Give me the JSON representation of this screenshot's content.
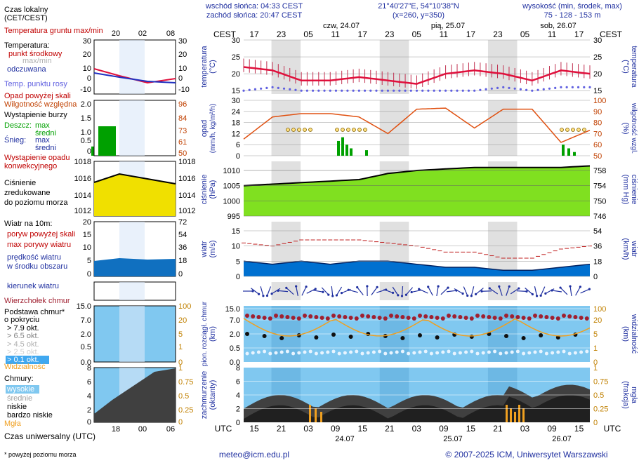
{
  "header": {
    "sunrise": "wschód słońca: 04:33 CEST",
    "sunset": "zachód słońca: 20:47 CEST",
    "coords": "21°40'27\"E, 54°10'38\"N",
    "grid": "(x=260, y=350)",
    "elevation_title": "wysokość (min, środek, max)",
    "elevation_values": "75 - 128 - 153 m"
  },
  "top_axis": {
    "left_label": "CEST",
    "right_label": "CEST",
    "hours": [
      "17",
      "23",
      "05",
      "11",
      "17",
      "23",
      "05",
      "11",
      "17",
      "23",
      "05",
      "11",
      "17"
    ],
    "days": [
      "czw, 24.07",
      "pią, 25.07",
      "sob, 26.07"
    ]
  },
  "bottom_axis": {
    "left_label": "UTC",
    "right_label": "UTC",
    "hours": [
      "15",
      "21",
      "03",
      "09",
      "15",
      "21",
      "03",
      "09",
      "15",
      "21",
      "03",
      "09",
      "15"
    ],
    "days": [
      "24.07",
      "25.07",
      "26.07"
    ]
  },
  "legend": {
    "time_title": "Czas lokalny\n(CET/CEST)",
    "time_ticks": [
      "20",
      "02",
      "08"
    ],
    "temp_ground": "Temperatura gruntu\nmax/min",
    "temp_title": "Temperatura:",
    "temp_mid": "punkt środkowy",
    "temp_max_min": "max/min",
    "temp_felt": "odczuwana",
    "temp_dew": "Temp. punktu rosy",
    "temp_ticks_left": [
      "30",
      "20",
      "10",
      "0",
      "-10"
    ],
    "temp_ticks_right": [
      "30",
      "20",
      "10",
      "0",
      "-10"
    ],
    "precip_above": "Opad powyżej skali",
    "humidity": "Wilgotność względna",
    "storm": "Wystąpienie burzy",
    "rain": "Deszcz:",
    "rain_max": "max",
    "rain_mid": "średni",
    "snow": "Śnieg:",
    "snow_max": "max",
    "snow_mid": "średni",
    "convective": "Wystąpienie opadu\nkonwekcyjnego",
    "precip_ticks_left": [
      "2.0",
      "1.5",
      "1.0",
      "0.5",
      "0"
    ],
    "precip_ticks_right": [
      "96",
      "84",
      "73",
      "61",
      "50"
    ],
    "pressure_title": "Ciśnienie\nzredukowane\ndo poziomu morza",
    "pressure_ticks_left": [
      "1018",
      "1016",
      "1014",
      "1012"
    ],
    "pressure_ticks_right": [
      "1018",
      "1016",
      "1014",
      "1012"
    ],
    "wind_title": "Wiatr na 10m:",
    "wind_gust_above": "poryw powyżej skali",
    "wind_gust_max": "max porywy wiatru",
    "wind_speed": "prędkość wiatru\nw środku obszaru",
    "wind_ticks_left": [
      "20",
      "15",
      "10",
      "5",
      "0"
    ],
    "wind_ticks_right": [
      "72",
      "54",
      "36",
      "18",
      "0"
    ],
    "wind_dir": "kierunek wiatru",
    "cloud_top": "Wierzchołek chmur",
    "cloud_base": "Podstawa chmur*\no pokryciu",
    "cov1": "> 7.9 okt.",
    "cov2": "> 6.5 okt.",
    "cov3": "> 4.5 okt.",
    "cov4": "> 2.5 okt.",
    "cov5": "> 0.1 okt.",
    "visibility": "Widzialność",
    "cloud_ticks_left": [
      "15.0",
      "7.0",
      "2.0",
      "0.5",
      "0.0"
    ],
    "cloud_ticks_right": [
      "100",
      "20",
      "5",
      "1",
      "0"
    ],
    "clouds_title": "Chmury:",
    "clouds_high": "wysokie",
    "clouds_mid": "średnie",
    "clouds_low": "niskie",
    "clouds_vlow": "bardzo niskie",
    "fog": "Mgła",
    "cover_ticks_left": [
      "8",
      "6",
      "4",
      "2",
      "0"
    ],
    "cover_ticks_right": [
      "1",
      "0.75",
      "0.5",
      "0.25",
      "0"
    ],
    "utc_title": "Czas uniwersalny (UTC)",
    "utc_ticks": [
      "18",
      "00",
      "06"
    ],
    "footnote": "* powyżej poziomu morza"
  },
  "panels": {
    "temp": {
      "ylabel_left": "temperatura\n(°C)",
      "ylabel_right": "(°C)\ntemperatura",
      "ticks": [
        "30",
        "25",
        "20",
        "15"
      ]
    },
    "precip": {
      "ylabel_left": "opad\n(mm/h, kg/m²/h)",
      "ylabel_right": "(%)\nwilgotność wzgl.",
      "ticks_left": [
        "30",
        "24",
        "18",
        "12",
        "6",
        "0"
      ],
      "ticks_right": [
        "100",
        "90",
        "80",
        "70",
        "60",
        "50"
      ]
    },
    "pressure": {
      "ylabel_left": "ciśnienie\n(hPa)",
      "ylabel_right": "(mm Hg)\nciśnienie",
      "ticks_left": [
        "1010",
        "1005",
        "1000",
        "995"
      ],
      "ticks_right": [
        "758",
        "754",
        "750",
        "746"
      ]
    },
    "wind": {
      "ylabel_left": "wiatr\n(m/s)",
      "ylabel_right": "(km/h)\nwiatr",
      "ticks_left": [
        "15",
        "10",
        "5",
        "0"
      ],
      "ticks_right": [
        "54",
        "36",
        "18",
        "0"
      ]
    },
    "cloudbase": {
      "ylabel_left": "pion. rozciągł. chmur\n(km)",
      "ylabel_right": "(km)\nwidzialność",
      "ticks_left": [
        "15.0",
        "7.0",
        "2.0",
        "0.5",
        "0.0"
      ],
      "ticks_right": [
        "100",
        "20",
        "5",
        "1",
        "0"
      ]
    },
    "cover": {
      "ylabel_left": "zachmurzenie\n(oktanty)",
      "ylabel_right": "(frakcja)\nmgła",
      "ticks_left": [
        "8",
        "6",
        "4",
        "2",
        "0"
      ],
      "ticks_right": [
        "1",
        "0.75",
        "0.5",
        "0.25",
        "0"
      ]
    }
  },
  "footer": {
    "email": "meteo@icm.edu.pl",
    "copyright": "© 2007-2025 ICM, Uniwersytet Warszawski"
  },
  "colors": {
    "temp_line": "#e0103c",
    "dew": "#6060e0",
    "humidity": "#e05010",
    "rain": "#00a000",
    "pressure_fill": "#80e020",
    "wind_fill": "#0070d0",
    "cloud_bg": "#80c8f0",
    "night_band": "#e0e0e0"
  },
  "chart_data": {
    "type": "line",
    "x_hours_cest": [
      17,
      23,
      5,
      11,
      17,
      23,
      5,
      11,
      17,
      23,
      5,
      11,
      17
    ],
    "temperature_c": [
      22,
      21,
      18,
      18,
      19,
      18,
      17,
      20,
      21,
      20,
      18,
      21,
      20
    ],
    "dew_point_c": [
      15,
      16,
      15,
      15,
      15,
      15,
      15,
      15,
      15,
      16,
      15,
      16,
      16
    ],
    "humidity_pct": [
      65,
      85,
      88,
      88,
      85,
      70,
      92,
      93,
      75,
      92,
      92,
      62,
      73
    ],
    "pressure_hpa": [
      1005,
      1005.5,
      1006,
      1006.5,
      1007,
      1009,
      1010,
      1010.5,
      1011,
      1011,
      1011,
      1011,
      1011.5
    ],
    "wind_speed_ms": [
      5,
      4,
      5,
      4,
      5,
      5,
      4,
      3,
      3,
      2,
      2,
      3,
      4
    ],
    "wind_gust_ms": [
      11,
      10,
      12,
      12,
      12,
      11,
      10,
      8,
      8,
      6,
      6,
      9,
      10
    ],
    "ylim_temp": [
      14,
      30
    ],
    "ylim_pressure": [
      995,
      1013
    ],
    "ylim_wind": [
      0,
      18
    ]
  }
}
